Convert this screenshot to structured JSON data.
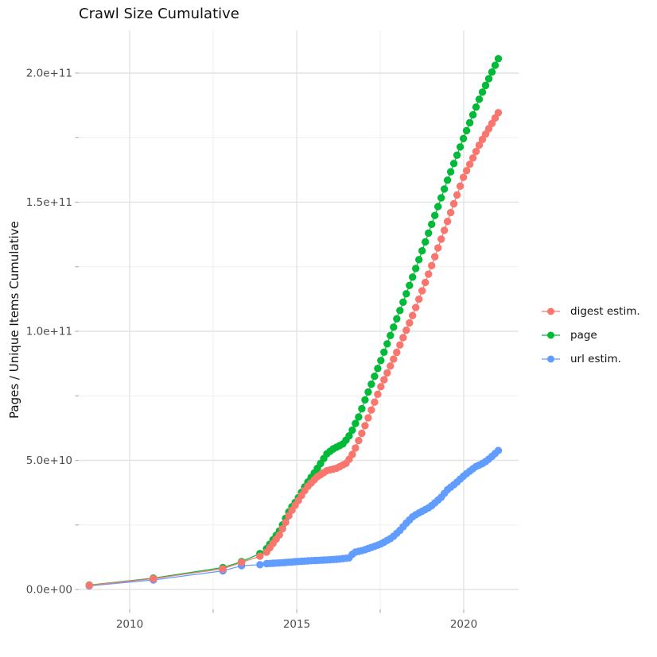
{
  "title": "Crawl Size Cumulative",
  "axes": {
    "y_title": "Pages / Unique Items Cumulative",
    "x_ticks": [
      {
        "label": "2010",
        "year": 2010
      },
      {
        "label": "2015",
        "year": 2015
      },
      {
        "label": "2020",
        "year": 2020
      }
    ],
    "x_minor_years": [
      2012.5,
      2017.5
    ],
    "y_ticks": [
      {
        "label": "0.0e+00",
        "value_e9": 0
      },
      {
        "label": "5.0e+10",
        "value_e9": 50
      },
      {
        "label": "1.0e+11",
        "value_e9": 100
      },
      {
        "label": "1.5e+11",
        "value_e9": 150
      },
      {
        "label": "2.0e+11",
        "value_e9": 200
      }
    ],
    "y_minor_e9": [
      25,
      75,
      125,
      175
    ]
  },
  "legend": [
    {
      "label": "digest estim.",
      "color": "#F8766D"
    },
    {
      "label": "page",
      "color": "#00BA38"
    },
    {
      "label": "url estim.",
      "color": "#619CFF"
    }
  ],
  "colors": {
    "digest": "#F8766D",
    "page": "#00BA38",
    "url": "#619CFF",
    "grid_major": "#e4e4e4",
    "grid_minor": "#efefef",
    "tick_mark": "#b3b3b3",
    "tick_text": "#4d4d4d",
    "title_text": "#111111"
  },
  "chart_data": {
    "type": "line",
    "style": "points+line (cumulative monthly crawl points)",
    "xlabel": "",
    "ylabel": "Pages / Unique Items Cumulative",
    "x_range_years": [
      2008.5,
      2021.65
    ],
    "ylim_e9": [
      -8,
      217
    ],
    "grid": "major+minor, light gray on white",
    "legend_position": "right-center",
    "y_unit": "items (value_e9 = billions, i.e. 50 = 5.0e+10)",
    "point_schedule": {
      "early_years": [
        2008.79,
        2010.71,
        2012.79,
        2013.35,
        2013.9
      ],
      "dense_start": 2014.1,
      "dense_end": 2021.05,
      "dense_step": 0.095
    },
    "series": [
      {
        "name": "digest estim.",
        "color": "#F8766D",
        "keyframes_year_value_e9": [
          [
            2008.79,
            1.6
          ],
          [
            2010.71,
            4.2
          ],
          [
            2012.79,
            8.0
          ],
          [
            2013.35,
            10.5
          ],
          [
            2013.9,
            12.9
          ],
          [
            2014.1,
            14.5
          ],
          [
            2014.5,
            21.5
          ],
          [
            2014.8,
            29.5
          ],
          [
            2015.0,
            33.5
          ],
          [
            2015.3,
            39.5
          ],
          [
            2015.6,
            43.5
          ],
          [
            2015.9,
            46.0
          ],
          [
            2016.2,
            47.0
          ],
          [
            2016.5,
            49.0
          ],
          [
            2016.7,
            53.0
          ],
          [
            2016.9,
            59.0
          ],
          [
            2017.0,
            62.0
          ],
          [
            2017.5,
            78.0
          ],
          [
            2018.0,
            92.0
          ],
          [
            2018.5,
            107.0
          ],
          [
            2019.0,
            124.0
          ],
          [
            2019.5,
            142.0
          ],
          [
            2020.0,
            160.0
          ],
          [
            2020.5,
            173.0
          ],
          [
            2021.05,
            185.0
          ]
        ]
      },
      {
        "name": "page",
        "color": "#00BA38",
        "keyframes_year_value_e9": [
          [
            2008.79,
            1.7
          ],
          [
            2010.71,
            4.4
          ],
          [
            2012.79,
            8.5
          ],
          [
            2013.35,
            10.8
          ],
          [
            2013.9,
            13.9
          ],
          [
            2014.1,
            15.8
          ],
          [
            2014.5,
            23.0
          ],
          [
            2014.8,
            31.0
          ],
          [
            2015.0,
            34.5
          ],
          [
            2015.3,
            41.0
          ],
          [
            2015.6,
            46.5
          ],
          [
            2015.9,
            52.5
          ],
          [
            2016.1,
            54.5
          ],
          [
            2016.4,
            56.5
          ],
          [
            2016.6,
            60.0
          ],
          [
            2016.9,
            68.0
          ],
          [
            2017.0,
            72.0
          ],
          [
            2017.5,
            88.0
          ],
          [
            2018.0,
            105.0
          ],
          [
            2018.5,
            122.0
          ],
          [
            2019.0,
            140.0
          ],
          [
            2019.5,
            158.0
          ],
          [
            2020.0,
            175.0
          ],
          [
            2020.5,
            191.0
          ],
          [
            2021.05,
            206.0
          ]
        ]
      },
      {
        "name": "url estim.",
        "color": "#619CFF",
        "keyframes_year_value_e9": [
          [
            2008.79,
            1.4
          ],
          [
            2010.71,
            3.7
          ],
          [
            2012.79,
            7.2
          ],
          [
            2013.35,
            9.2
          ],
          [
            2013.9,
            9.6
          ],
          [
            2014.1,
            10.0
          ],
          [
            2014.5,
            10.3
          ],
          [
            2015.0,
            10.8
          ],
          [
            2015.5,
            11.2
          ],
          [
            2016.0,
            11.5
          ],
          [
            2016.3,
            11.8
          ],
          [
            2016.6,
            12.3
          ],
          [
            2016.7,
            14.3
          ],
          [
            2017.0,
            15.2
          ],
          [
            2017.5,
            17.5
          ],
          [
            2017.85,
            20.0
          ],
          [
            2018.1,
            23.0
          ],
          [
            2018.3,
            26.0
          ],
          [
            2018.5,
            28.5
          ],
          [
            2019.0,
            32.0
          ],
          [
            2019.35,
            36.0
          ],
          [
            2019.5,
            38.5
          ],
          [
            2019.75,
            41.0
          ],
          [
            2020.0,
            44.0
          ],
          [
            2020.35,
            47.5
          ],
          [
            2020.6,
            49.0
          ],
          [
            2020.8,
            51.0
          ],
          [
            2021.05,
            54.0
          ]
        ]
      }
    ]
  }
}
